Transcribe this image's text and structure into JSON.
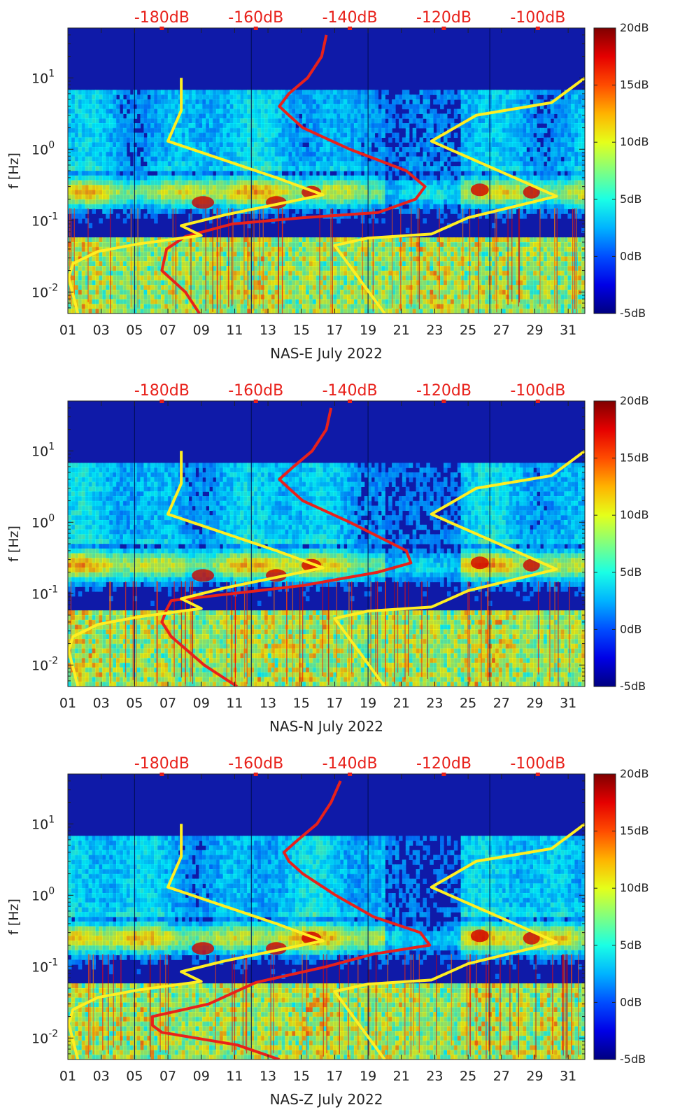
{
  "chart_data": [
    {
      "type": "heatmap",
      "title": "",
      "xlabel": "NAS-E July 2022",
      "ylabel": "f [Hz]",
      "x_tick_labels": [
        "01",
        "03",
        "05",
        "07",
        "09",
        "11",
        "13",
        "15",
        "17",
        "19",
        "21",
        "23",
        "25",
        "27",
        "29",
        "31"
      ],
      "x_range_days": [
        1,
        32
      ],
      "y_scale": "log",
      "y_range_hz": [
        0.005,
        50
      ],
      "y_tick_labels": [
        "10^-2",
        "10^-1",
        "10^0",
        "10^1"
      ],
      "y_tick_values": [
        0.01,
        0.1,
        1,
        10
      ],
      "top_axis_labels": [
        "-180dB",
        "-160dB",
        "-140dB",
        "-120dB",
        "-100dB"
      ],
      "top_axis_values_db": [
        -180,
        -160,
        -140,
        -120,
        -100
      ],
      "colorbar_labels": [
        "20dB",
        "15dB",
        "10dB",
        "5dB",
        "0dB",
        "-5dB"
      ],
      "colorbar_values_db": [
        20,
        15,
        10,
        5,
        0,
        -5
      ],
      "colors": {
        "red_curve": "#e8211b",
        "yellow_curve": "#ffee22",
        "top_labels": "#e8211b"
      },
      "series": [
        {
          "name": "red-psd-curve",
          "color": "#e8211b",
          "points_db_hz": [
            [
              -172,
              0.005
            ],
            [
              -175,
              0.01
            ],
            [
              -180,
              0.02
            ],
            [
              -179,
              0.04
            ],
            [
              -175,
              0.06
            ],
            [
              -165,
              0.09
            ],
            [
              -150,
              0.11
            ],
            [
              -134,
              0.13
            ],
            [
              -126,
              0.2
            ],
            [
              -124,
              0.3
            ],
            [
              -128,
              0.5
            ],
            [
              -140,
              1
            ],
            [
              -150,
              2
            ],
            [
              -153,
              3
            ],
            [
              -155,
              4
            ],
            [
              -153,
              6
            ],
            [
              -149,
              10
            ],
            [
              -146,
              20
            ],
            [
              -145,
              40
            ]
          ]
        },
        {
          "name": "yellow-low-noise-model",
          "color": "#ffee22",
          "points_days_hz": [
            [
              1.6,
              0.005
            ],
            [
              1.05,
              0.016
            ],
            [
              1.3,
              0.025
            ],
            [
              2.8,
              0.037
            ],
            [
              5.2,
              0.047
            ],
            [
              9.0,
              0.062
            ],
            [
              7.8,
              0.085
            ],
            [
              10.4,
              0.12
            ],
            [
              16.3,
              0.23
            ],
            [
              13.5,
              0.4
            ],
            [
              7.0,
              1.3
            ],
            [
              7.8,
              3.5
            ],
            [
              7.8,
              10
            ]
          ]
        },
        {
          "name": "yellow-high-noise-model",
          "color": "#ffee22",
          "points_days_hz": [
            [
              20.0,
              0.005
            ],
            [
              17.0,
              0.045
            ],
            [
              19.0,
              0.057
            ],
            [
              22.8,
              0.065
            ],
            [
              25.0,
              0.11
            ],
            [
              30.3,
              0.22
            ],
            [
              22.8,
              1.3
            ],
            [
              25.5,
              3.0
            ],
            [
              30.0,
              4.5
            ],
            [
              32.0,
              10
            ]
          ]
        }
      ]
    },
    {
      "type": "heatmap",
      "title": "",
      "xlabel": "NAS-N July 2022",
      "ylabel": "f [Hz]",
      "x_tick_labels": [
        "01",
        "03",
        "05",
        "07",
        "09",
        "11",
        "13",
        "15",
        "17",
        "19",
        "21",
        "23",
        "25",
        "27",
        "29",
        "31"
      ],
      "x_range_days": [
        1,
        32
      ],
      "y_scale": "log",
      "y_range_hz": [
        0.005,
        50
      ],
      "y_tick_labels": [
        "10^-2",
        "10^-1",
        "10^0",
        "10^1"
      ],
      "y_tick_values": [
        0.01,
        0.1,
        1,
        10
      ],
      "top_axis_labels": [
        "-180dB",
        "-160dB",
        "-140dB",
        "-120dB",
        "-100dB"
      ],
      "top_axis_values_db": [
        -180,
        -160,
        -140,
        -120,
        -100
      ],
      "colorbar_labels": [
        "20dB",
        "15dB",
        "10dB",
        "5dB",
        "0dB",
        "-5dB"
      ],
      "colorbar_values_db": [
        20,
        15,
        10,
        5,
        0,
        -5
      ],
      "colors": {
        "red_curve": "#e8211b",
        "yellow_curve": "#ffee22",
        "top_labels": "#e8211b"
      },
      "series": [
        {
          "name": "red-psd-curve",
          "color": "#e8211b",
          "points_db_hz": [
            [
              -164,
              0.005
            ],
            [
              -171,
              0.01
            ],
            [
              -178,
              0.025
            ],
            [
              -180,
              0.04
            ],
            [
              -179,
              0.06
            ],
            [
              -178,
              0.08
            ],
            [
              -165,
              0.1
            ],
            [
              -150,
              0.13
            ],
            [
              -134,
              0.2
            ],
            [
              -127,
              0.27
            ],
            [
              -128,
              0.4
            ],
            [
              -140,
              1
            ],
            [
              -150,
              2
            ],
            [
              -153,
              3
            ],
            [
              -155,
              4
            ],
            [
              -152,
              6
            ],
            [
              -148,
              10
            ],
            [
              -145,
              20
            ],
            [
              -144,
              40
            ]
          ]
        },
        {
          "name": "yellow-low-noise-model",
          "color": "#ffee22",
          "points_days_hz": [
            [
              1.6,
              0.005
            ],
            [
              1.05,
              0.016
            ],
            [
              1.3,
              0.025
            ],
            [
              2.8,
              0.037
            ],
            [
              5.2,
              0.047
            ],
            [
              9.0,
              0.062
            ],
            [
              7.8,
              0.085
            ],
            [
              10.4,
              0.12
            ],
            [
              16.3,
              0.23
            ],
            [
              13.5,
              0.4
            ],
            [
              7.0,
              1.3
            ],
            [
              7.8,
              3.5
            ],
            [
              7.8,
              10
            ]
          ]
        },
        {
          "name": "yellow-high-noise-model",
          "color": "#ffee22",
          "points_days_hz": [
            [
              20.0,
              0.005
            ],
            [
              17.0,
              0.045
            ],
            [
              19.0,
              0.057
            ],
            [
              22.8,
              0.065
            ],
            [
              25.0,
              0.11
            ],
            [
              30.3,
              0.22
            ],
            [
              22.8,
              1.3
            ],
            [
              25.5,
              3.0
            ],
            [
              30.0,
              4.5
            ],
            [
              32.0,
              10
            ]
          ]
        }
      ]
    },
    {
      "type": "heatmap",
      "title": "",
      "xlabel": "NAS-Z July 2022",
      "ylabel": "f [Hz]",
      "x_tick_labels": [
        "01",
        "03",
        "05",
        "07",
        "09",
        "11",
        "13",
        "15",
        "17",
        "19",
        "21",
        "23",
        "25",
        "27",
        "29",
        "31"
      ],
      "x_range_days": [
        1,
        32
      ],
      "y_scale": "log",
      "y_range_hz": [
        0.005,
        50
      ],
      "y_tick_labels": [
        "10^-2",
        "10^-1",
        "10^0",
        "10^1"
      ],
      "y_tick_values": [
        0.01,
        0.1,
        1,
        10
      ],
      "top_axis_labels": [
        "-180dB",
        "-160dB",
        "-140dB",
        "-120dB",
        "-100dB"
      ],
      "top_axis_values_db": [
        -180,
        -160,
        -140,
        -120,
        -100
      ],
      "colorbar_labels": [
        "20dB",
        "15dB",
        "10dB",
        "5dB",
        "0dB",
        "-5dB"
      ],
      "colorbar_values_db": [
        20,
        15,
        10,
        5,
        0,
        -5
      ],
      "colors": {
        "red_curve": "#e8211b",
        "yellow_curve": "#ffee22",
        "top_labels": "#e8211b"
      },
      "series": [
        {
          "name": "red-psd-curve",
          "color": "#e8211b",
          "points_db_hz": [
            [
              -155,
              0.005
            ],
            [
              -164,
              0.008
            ],
            [
              -180,
              0.012
            ],
            [
              -182,
              0.015
            ],
            [
              -182,
              0.02
            ],
            [
              -170,
              0.03
            ],
            [
              -160,
              0.06
            ],
            [
              -145,
              0.1
            ],
            [
              -135,
              0.15
            ],
            [
              -123,
              0.2
            ],
            [
              -125,
              0.3
            ],
            [
              -135,
              0.5
            ],
            [
              -143,
              1
            ],
            [
              -150,
              2
            ],
            [
              -153,
              3
            ],
            [
              -154,
              4
            ],
            [
              -151,
              6
            ],
            [
              -147,
              10
            ],
            [
              -144,
              20
            ],
            [
              -142,
              40
            ]
          ]
        },
        {
          "name": "yellow-low-noise-model",
          "color": "#ffee22",
          "points_days_hz": [
            [
              1.6,
              0.005
            ],
            [
              1.05,
              0.016
            ],
            [
              1.3,
              0.025
            ],
            [
              2.8,
              0.037
            ],
            [
              5.2,
              0.047
            ],
            [
              9.0,
              0.062
            ],
            [
              7.8,
              0.085
            ],
            [
              10.4,
              0.12
            ],
            [
              16.3,
              0.23
            ],
            [
              13.5,
              0.4
            ],
            [
              7.0,
              1.3
            ],
            [
              7.8,
              3.5
            ],
            [
              7.8,
              10
            ]
          ]
        },
        {
          "name": "yellow-high-noise-model",
          "color": "#ffee22",
          "points_days_hz": [
            [
              20.0,
              0.005
            ],
            [
              17.0,
              0.045
            ],
            [
              19.0,
              0.057
            ],
            [
              22.8,
              0.065
            ],
            [
              25.0,
              0.11
            ],
            [
              30.3,
              0.22
            ],
            [
              22.8,
              1.3
            ],
            [
              25.5,
              3.0
            ],
            [
              30.0,
              4.5
            ],
            [
              32.0,
              10
            ]
          ]
        }
      ]
    }
  ]
}
